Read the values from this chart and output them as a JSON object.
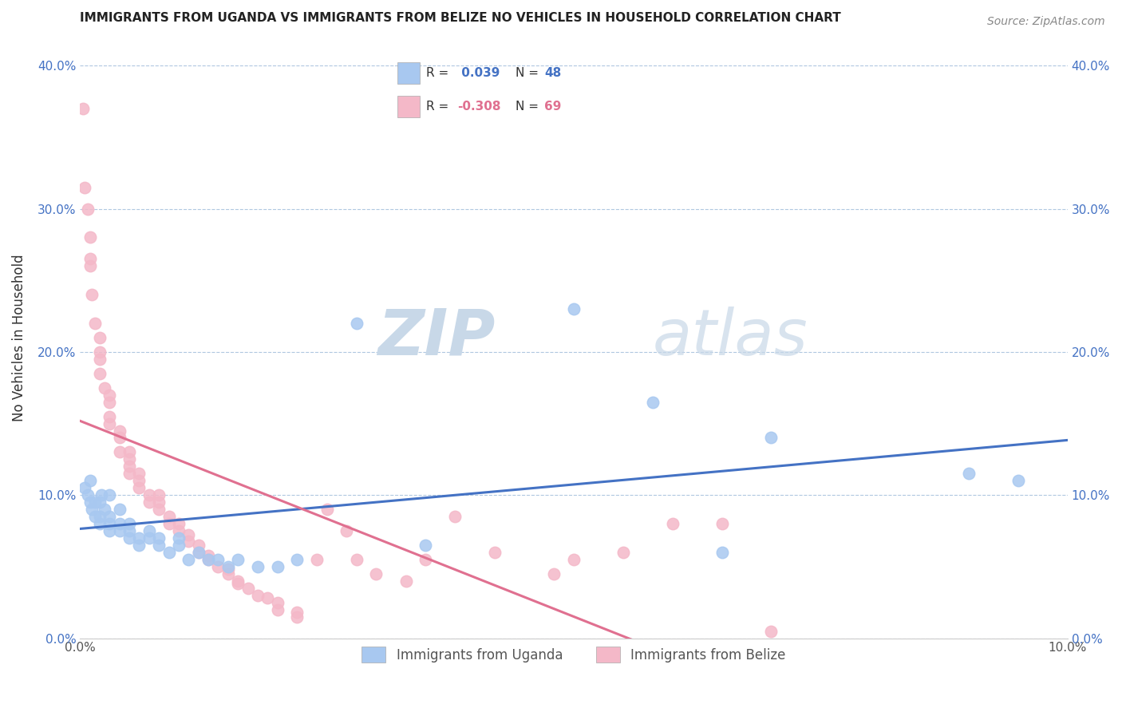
{
  "title": "IMMIGRANTS FROM UGANDA VS IMMIGRANTS FROM BELIZE NO VEHICLES IN HOUSEHOLD CORRELATION CHART",
  "source": "Source: ZipAtlas.com",
  "ylabel": "No Vehicles in Household",
  "xlabel_uganda": "Immigrants from Uganda",
  "xlabel_belize": "Immigrants from Belize",
  "xlim": [
    0.0,
    0.1
  ],
  "ylim": [
    0.0,
    0.42
  ],
  "yticks": [
    0.0,
    0.1,
    0.2,
    0.3,
    0.4
  ],
  "ytick_labels": [
    "0.0%",
    "10.0%",
    "20.0%",
    "30.0%",
    "40.0%"
  ],
  "uganda_R": 0.039,
  "uganda_N": 48,
  "belize_R": -0.308,
  "belize_N": 69,
  "uganda_color": "#a8c8f0",
  "belize_color": "#f4b8c8",
  "uganda_line_color": "#4472c4",
  "belize_line_color": "#e07090",
  "watermark_zip": "ZIP",
  "watermark_atlas": "atlas",
  "watermark_color": "#c8d8e8",
  "uganda_x": [
    0.0005,
    0.0008,
    0.001,
    0.001,
    0.0012,
    0.0015,
    0.0015,
    0.002,
    0.002,
    0.002,
    0.0022,
    0.0025,
    0.003,
    0.003,
    0.003,
    0.003,
    0.004,
    0.004,
    0.004,
    0.005,
    0.005,
    0.005,
    0.006,
    0.006,
    0.007,
    0.007,
    0.008,
    0.008,
    0.009,
    0.01,
    0.01,
    0.011,
    0.012,
    0.013,
    0.014,
    0.015,
    0.016,
    0.018,
    0.02,
    0.022,
    0.028,
    0.035,
    0.05,
    0.058,
    0.065,
    0.07,
    0.09,
    0.095
  ],
  "uganda_y": [
    0.105,
    0.1,
    0.095,
    0.11,
    0.09,
    0.085,
    0.095,
    0.08,
    0.085,
    0.095,
    0.1,
    0.09,
    0.075,
    0.08,
    0.085,
    0.1,
    0.075,
    0.08,
    0.09,
    0.07,
    0.075,
    0.08,
    0.065,
    0.07,
    0.07,
    0.075,
    0.065,
    0.07,
    0.06,
    0.065,
    0.07,
    0.055,
    0.06,
    0.055,
    0.055,
    0.05,
    0.055,
    0.05,
    0.05,
    0.055,
    0.22,
    0.065,
    0.23,
    0.165,
    0.06,
    0.14,
    0.115,
    0.11
  ],
  "belize_x": [
    0.0003,
    0.0005,
    0.0008,
    0.001,
    0.001,
    0.001,
    0.0012,
    0.0015,
    0.002,
    0.002,
    0.002,
    0.002,
    0.0025,
    0.003,
    0.003,
    0.003,
    0.003,
    0.004,
    0.004,
    0.004,
    0.005,
    0.005,
    0.005,
    0.005,
    0.006,
    0.006,
    0.006,
    0.007,
    0.007,
    0.008,
    0.008,
    0.008,
    0.009,
    0.009,
    0.01,
    0.01,
    0.011,
    0.011,
    0.012,
    0.012,
    0.013,
    0.013,
    0.014,
    0.015,
    0.015,
    0.016,
    0.016,
    0.017,
    0.018,
    0.019,
    0.02,
    0.02,
    0.022,
    0.022,
    0.024,
    0.025,
    0.027,
    0.028,
    0.03,
    0.033,
    0.035,
    0.038,
    0.042,
    0.048,
    0.05,
    0.055,
    0.06,
    0.065,
    0.07
  ],
  "belize_y": [
    0.37,
    0.315,
    0.3,
    0.28,
    0.265,
    0.26,
    0.24,
    0.22,
    0.21,
    0.2,
    0.195,
    0.185,
    0.175,
    0.17,
    0.165,
    0.155,
    0.15,
    0.145,
    0.14,
    0.13,
    0.13,
    0.125,
    0.12,
    0.115,
    0.115,
    0.11,
    0.105,
    0.1,
    0.095,
    0.1,
    0.095,
    0.09,
    0.085,
    0.08,
    0.08,
    0.075,
    0.072,
    0.068,
    0.065,
    0.06,
    0.058,
    0.055,
    0.05,
    0.048,
    0.045,
    0.04,
    0.038,
    0.035,
    0.03,
    0.028,
    0.025,
    0.02,
    0.018,
    0.015,
    0.055,
    0.09,
    0.075,
    0.055,
    0.045,
    0.04,
    0.055,
    0.085,
    0.06,
    0.045,
    0.055,
    0.06,
    0.08,
    0.08,
    0.005
  ]
}
